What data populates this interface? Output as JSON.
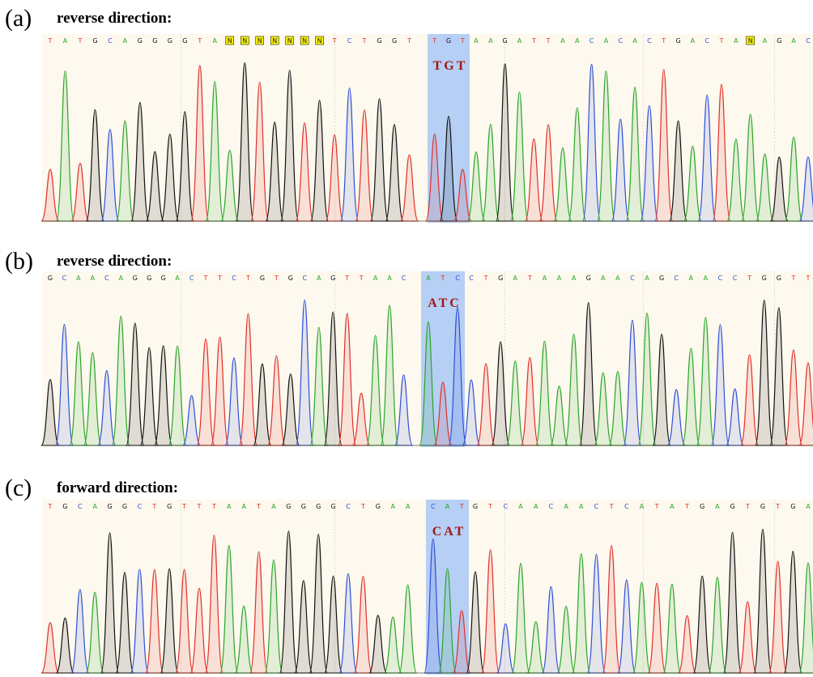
{
  "panels": [
    {
      "label": "(a)",
      "title": "reverse direction:",
      "sequence_left": [
        "T",
        "A",
        "T",
        "G",
        "C",
        "A",
        "G",
        "G",
        "G",
        "G",
        "T",
        "A",
        "N",
        "N",
        "N",
        "N",
        "N",
        "N",
        "N",
        "T",
        "C",
        "T",
        "G",
        "G",
        "T"
      ],
      "codon_bases": [
        "T",
        "G",
        "T"
      ],
      "sequence_right": [
        "A",
        "A",
        "G",
        "A",
        "T",
        "T",
        "A",
        "A",
        "C",
        "A",
        "C",
        "A",
        "C",
        "T",
        "G",
        "A",
        "C",
        "T",
        "A",
        "N",
        "A",
        "G",
        "A",
        "C"
      ],
      "codon_label": "TGT"
    },
    {
      "label": "(b)",
      "title": "reverse direction:",
      "sequence_left": [
        "G",
        "C",
        "A",
        "A",
        "C",
        "A",
        "G",
        "G",
        "G",
        "A",
        "C",
        "T",
        "T",
        "C",
        "T",
        "G",
        "T",
        "G",
        "C",
        "A",
        "G",
        "T",
        "T",
        "A",
        "A",
        "C"
      ],
      "codon_bases": [
        "A",
        "T",
        "C"
      ],
      "sequence_right": [
        "C",
        "T",
        "G",
        "A",
        "T",
        "A",
        "A",
        "A",
        "G",
        "A",
        "A",
        "C",
        "A",
        "G",
        "C",
        "A",
        "A",
        "C",
        "C",
        "T",
        "G",
        "G",
        "T",
        "T"
      ],
      "codon_label": "ATC"
    },
    {
      "label": "(c)",
      "title": "forward direction:",
      "sequence_left": [
        "T",
        "G",
        "C",
        "A",
        "G",
        "G",
        "C",
        "T",
        "G",
        "T",
        "T",
        "T",
        "A",
        "A",
        "T",
        "A",
        "G",
        "G",
        "G",
        "G",
        "C",
        "T",
        "G",
        "A",
        "A"
      ],
      "codon_bases": [
        "C",
        "A",
        "T"
      ],
      "sequence_right": [
        "G",
        "T",
        "C",
        "A",
        "A",
        "C",
        "A",
        "A",
        "C",
        "T",
        "C",
        "A",
        "T",
        "A",
        "T",
        "G",
        "A",
        "G",
        "T",
        "G",
        "T",
        "G",
        "A"
      ],
      "codon_label": "CAT"
    }
  ]
}
